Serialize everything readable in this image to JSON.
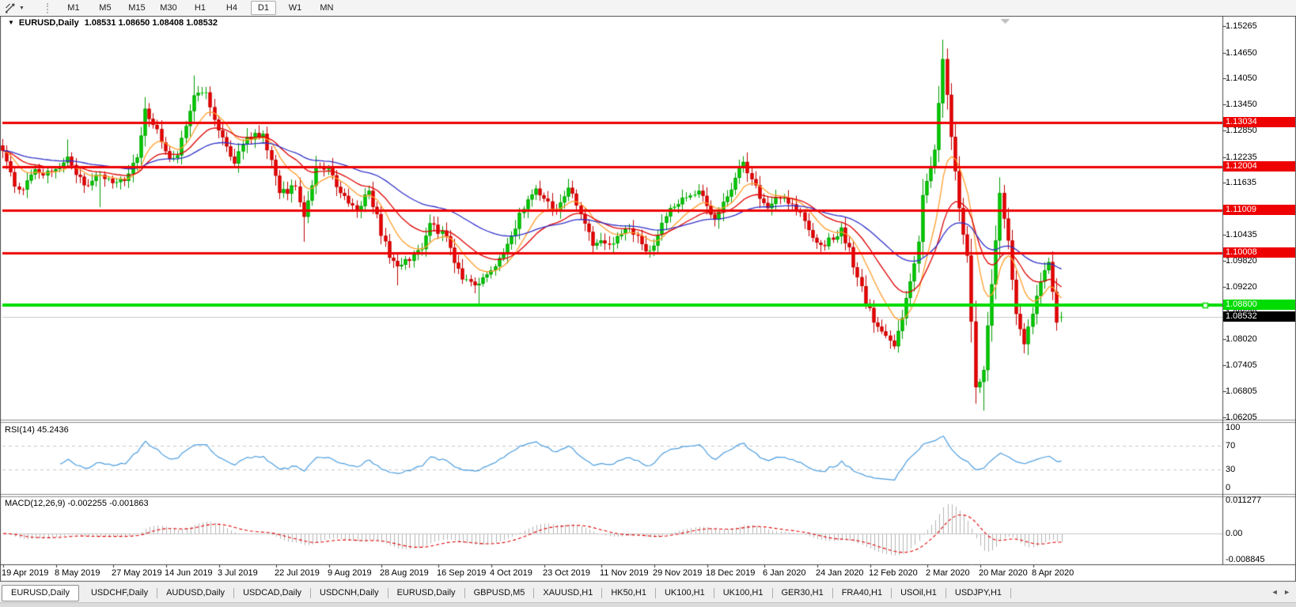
{
  "toolbar": {
    "tools_icon": "drawing-tools",
    "dropdown_glyph": "▼",
    "timeframes": [
      "M1",
      "M5",
      "M15",
      "M30",
      "H1",
      "H4",
      "D1",
      "W1",
      "MN"
    ],
    "active_timeframe": "D1"
  },
  "chart": {
    "title_symbol": "EURUSD,Daily",
    "title_ohlc": "1.08531 1.08650 1.08408 1.08532",
    "title_dropdown_glyph": "▼"
  },
  "chart_data": {
    "type": "candlestick",
    "symbol": "EURUSD",
    "timeframe": "Daily",
    "current_ohlc": {
      "open": 1.08531,
      "high": 1.0865,
      "low": 1.08408,
      "close": 1.08532
    },
    "price_axis": {
      "ticks": [
        "1.15265",
        "1.14650",
        "1.14050",
        "1.13450",
        "1.12850",
        "1.12235",
        "1.11635",
        "1.10435",
        "1.09820",
        "1.09220",
        "1.08620",
        "1.08020",
        "1.07405",
        "1.06805",
        "1.06205"
      ],
      "top_price": 1.15265,
      "bottom_price": 1.06205
    },
    "horizontal_lines": [
      {
        "price": 1.13034,
        "label": "1.13034",
        "color": "#EE0101",
        "width": 3,
        "end_marker": false
      },
      {
        "price": 1.12004,
        "label": "1.12004",
        "color": "#EE0101",
        "width": 3,
        "end_marker": false
      },
      {
        "price": 1.11009,
        "label": "1.11009",
        "color": "#EE0101",
        "width": 3,
        "end_marker": false
      },
      {
        "price": 1.10008,
        "label": "1.10008",
        "color": "#EE0101",
        "width": 3,
        "end_marker": false
      },
      {
        "price": 1.088,
        "label": "1.08800",
        "color": "#00DC00",
        "width": 4,
        "end_marker": true
      }
    ],
    "current_price_line": {
      "price": 1.08532,
      "label": "1.08532",
      "color": "#C8C8C8",
      "badge_color": "#000000"
    },
    "shift_marker_fraction": 0.822,
    "date_labels": [
      "19 Apr 2019",
      "8 May 2019",
      "27 May 2019",
      "14 Jun 2019",
      "3 Jul 2019",
      "22 Jul 2019",
      "9 Aug 2019",
      "28 Aug 2019",
      "16 Sep 2019",
      "4 Oct 2019",
      "23 Oct 2019",
      "11 Nov 2019",
      "29 Nov 2019",
      "18 Dec 2019",
      "6 Jan 2020",
      "24 Jan 2020",
      "12 Feb 2020",
      "2 Mar 2020",
      "20 Mar 2020",
      "8 Apr 2020"
    ],
    "date_tick_indices": [
      0,
      13,
      27,
      40,
      53,
      67,
      80,
      93,
      107,
      120,
      133,
      147,
      160,
      173,
      187,
      200,
      213,
      227,
      240,
      253
    ],
    "candles": {
      "count": 261,
      "close_anchors": [
        [
          0,
          1.1238
        ],
        [
          3,
          1.1155
        ],
        [
          5,
          1.1148
        ],
        [
          8,
          1.1195
        ],
        [
          12,
          1.119
        ],
        [
          16,
          1.1224
        ],
        [
          20,
          1.1158
        ],
        [
          24,
          1.1182
        ],
        [
          27,
          1.1163
        ],
        [
          30,
          1.1168
        ],
        [
          33,
          1.1222
        ],
        [
          35,
          1.1335
        ],
        [
          38,
          1.1288
        ],
        [
          41,
          1.1219
        ],
        [
          43,
          1.1227
        ],
        [
          47,
          1.1366
        ],
        [
          50,
          1.1373
        ],
        [
          53,
          1.1285
        ],
        [
          57,
          1.1208
        ],
        [
          60,
          1.127
        ],
        [
          64,
          1.1277
        ],
        [
          68,
          1.114
        ],
        [
          72,
          1.1155
        ],
        [
          74,
          1.1085
        ],
        [
          77,
          1.12
        ],
        [
          80,
          1.12
        ],
        [
          83,
          1.114
        ],
        [
          87,
          1.11
        ],
        [
          90,
          1.1145
        ],
        [
          95,
          1.099
        ],
        [
          97,
          1.097
        ],
        [
          103,
          1.101
        ],
        [
          105,
          1.107
        ],
        [
          109,
          1.104
        ],
        [
          113,
          1.094
        ],
        [
          117,
          1.093
        ],
        [
          121,
          1.097
        ],
        [
          125,
          1.104
        ],
        [
          129,
          1.1125
        ],
        [
          131,
          1.115
        ],
        [
          136,
          1.11
        ],
        [
          139,
          1.1152
        ],
        [
          144,
          1.105
        ],
        [
          145,
          1.1018
        ],
        [
          149,
          1.102
        ],
        [
          154,
          1.1058
        ],
        [
          158,
          1.1005
        ],
        [
          160,
          1.1018
        ],
        [
          164,
          1.1105
        ],
        [
          168,
          1.113
        ],
        [
          171,
          1.1145
        ],
        [
          175,
          1.1078
        ],
        [
          182,
          1.1212
        ],
        [
          184,
          1.1172
        ],
        [
          188,
          1.1105
        ],
        [
          192,
          1.1128
        ],
        [
          196,
          1.1095
        ],
        [
          200,
          1.1025
        ],
        [
          204,
          1.1032
        ],
        [
          206,
          1.106
        ],
        [
          210,
          1.0945
        ],
        [
          214,
          1.084
        ],
        [
          219,
          1.0785
        ],
        [
          221,
          1.085
        ],
        [
          225,
          1.1027
        ],
        [
          226,
          1.1135
        ],
        [
          229,
          1.124
        ],
        [
          231,
          1.145
        ],
        [
          233,
          1.127
        ],
        [
          235,
          1.1105
        ],
        [
          237,
          1.0995
        ],
        [
          239,
          1.069
        ],
        [
          241,
          1.073
        ],
        [
          244,
          1.103
        ],
        [
          245,
          1.114
        ],
        [
          247,
          1.103
        ],
        [
          249,
          1.086
        ],
        [
          251,
          1.079
        ],
        [
          253,
          1.086
        ],
        [
          255,
          1.0935
        ],
        [
          257,
          1.098
        ],
        [
          259,
          1.084
        ],
        [
          260,
          1.08532
        ]
      ],
      "wick_overrides": [
        {
          "i": 16,
          "high": 1.1264
        },
        {
          "i": 24,
          "low": 1.1107
        },
        {
          "i": 47,
          "high": 1.1412
        },
        {
          "i": 74,
          "low": 1.1027
        },
        {
          "i": 97,
          "low": 1.0926
        },
        {
          "i": 117,
          "low": 1.0879
        },
        {
          "i": 219,
          "low": 1.0778
        },
        {
          "i": 231,
          "high": 1.1495
        },
        {
          "i": 241,
          "low": 1.0636
        },
        {
          "i": 260,
          "high": 1.0865,
          "low": 1.08408
        }
      ]
    },
    "moving_averages": [
      {
        "period": 10,
        "color": "#FF9E2C"
      },
      {
        "period": 22,
        "color": "#DF0000"
      },
      {
        "period": 50,
        "color": "#3030C8"
      }
    ],
    "rsi": {
      "label": "RSI(14) 45.2436",
      "period": 14,
      "value": 45.2436,
      "levels": [
        70,
        30
      ],
      "axis_ticks": [
        "100",
        "70",
        "30",
        "0"
      ],
      "color": "#4C9EE0"
    },
    "macd": {
      "label": "MACD(12,26,9) -0.002255 -0.001863",
      "fast": 12,
      "slow": 26,
      "signal": 9,
      "value": -0.002255,
      "signal_value": -0.001863,
      "axis_ticks": [
        "0.011277",
        "0.00",
        "-0.008845"
      ],
      "histogram_color": "#B5B5B5",
      "signal_color": "#E00000"
    },
    "colors": {
      "up_fill": "#00D600",
      "up_border": "#009C00",
      "down_fill": "#F30000",
      "down_border": "#BE0000",
      "background": "#FFFFFF",
      "axis_text": "#000000"
    }
  },
  "tabs": {
    "items": [
      "EURUSD,Daily",
      "USDCHF,Daily",
      "AUDUSD,Daily",
      "USDCAD,Daily",
      "USDCNH,Daily",
      "EURUSD,Daily",
      "GBPUSD,M5",
      "XAUUSD,H1",
      "HK50,H1",
      "UK100,H1",
      "UK100,H1",
      "GER30,H1",
      "FRA40,H1",
      "USOil,H1",
      "USDJPY,H1"
    ],
    "active_index": 0,
    "nav_left": "◄",
    "nav_right": "►"
  }
}
